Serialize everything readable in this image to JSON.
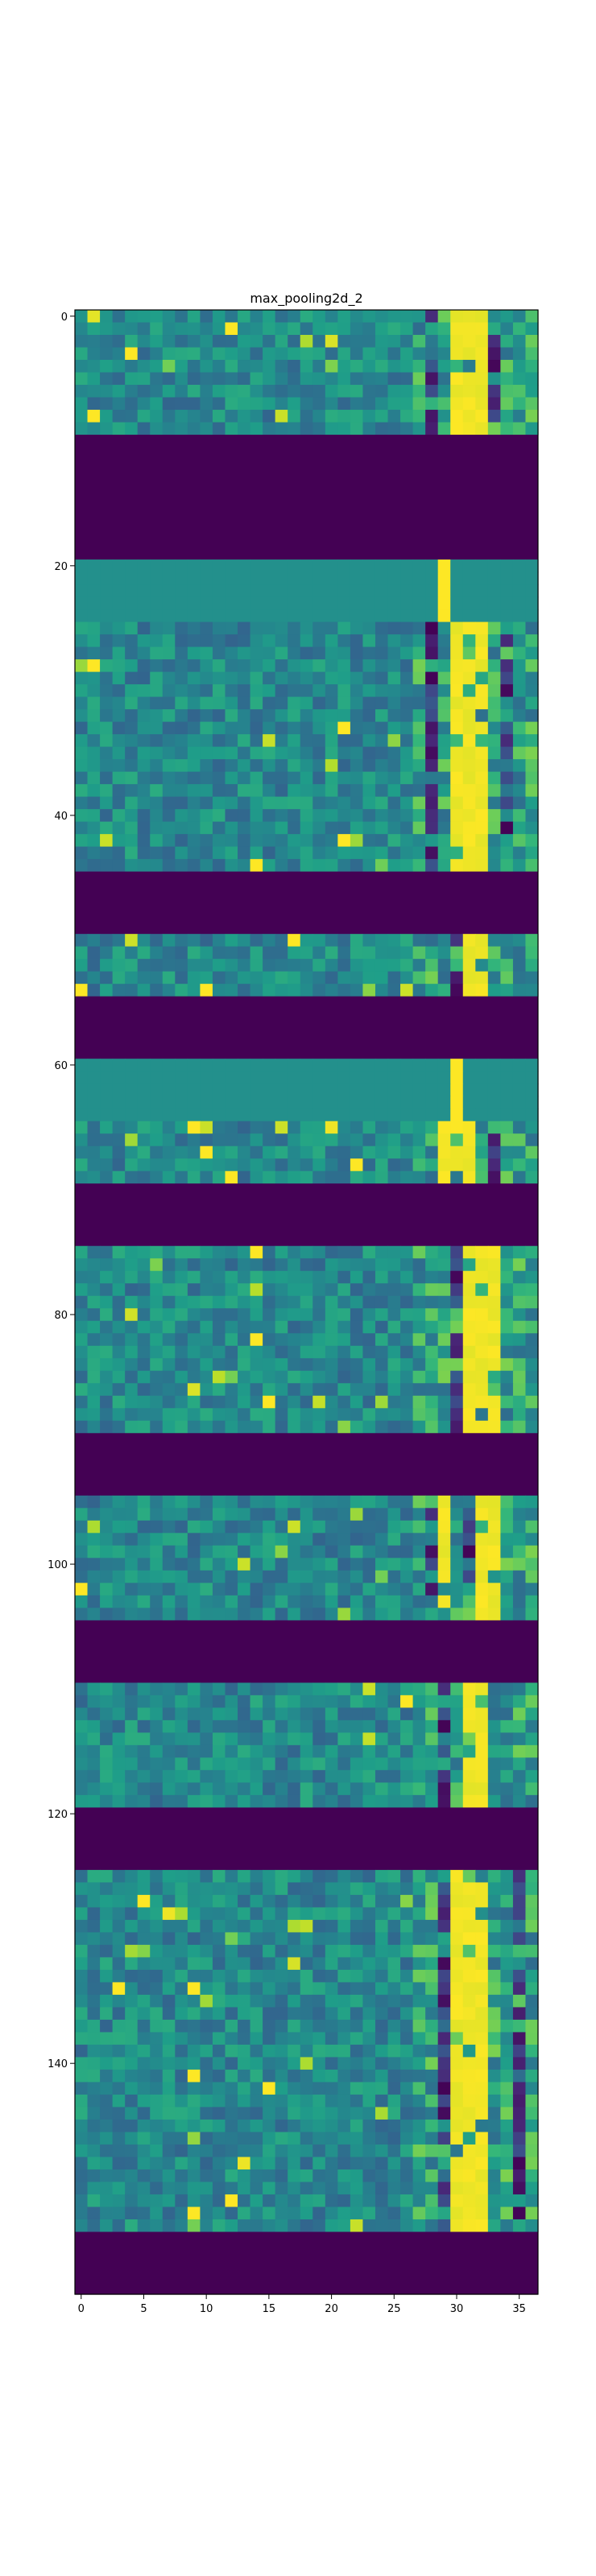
{
  "chart_data": {
    "type": "heatmap",
    "title": "max_pooling2d_2",
    "xlabel": "",
    "ylabel": "",
    "colormap": "viridis",
    "n_cols": 37,
    "n_rows": 159,
    "xlim": [
      -0.5,
      36.5
    ],
    "ylim": [
      158.5,
      -0.5
    ],
    "x_ticks": [
      0,
      5,
      10,
      15,
      20,
      25,
      30,
      35
    ],
    "y_ticks": [
      0,
      20,
      40,
      60,
      80,
      100,
      120,
      140
    ],
    "grid": false,
    "blocks": [
      {
        "rows": [
          0,
          9
        ],
        "kind": "textured",
        "bright_cols": [
          30,
          31,
          32
        ],
        "dark_cols": [
          28,
          33
        ]
      },
      {
        "rows": [
          10,
          19
        ],
        "kind": "off"
      },
      {
        "rows": [
          20,
          24
        ],
        "kind": "flat",
        "bright_cols": [
          29
        ]
      },
      {
        "rows": [
          25,
          44
        ],
        "kind": "textured",
        "bright_cols": [
          30,
          31,
          32
        ],
        "dark_cols": [
          28,
          34
        ]
      },
      {
        "rows": [
          45,
          49
        ],
        "kind": "off"
      },
      {
        "rows": [
          50,
          54
        ],
        "kind": "textured",
        "bright_cols": [
          31,
          32
        ],
        "dark_cols": [
          30
        ]
      },
      {
        "rows": [
          55,
          59
        ],
        "kind": "off"
      },
      {
        "rows": [
          60,
          64
        ],
        "kind": "flat",
        "bright_cols": [
          30
        ]
      },
      {
        "rows": [
          65,
          69
        ],
        "kind": "textured",
        "bright_cols": [
          29,
          30,
          31
        ],
        "dark_cols": [
          33
        ]
      },
      {
        "rows": [
          70,
          74
        ],
        "kind": "off"
      },
      {
        "rows": [
          75,
          89
        ],
        "kind": "textured",
        "bright_cols": [
          31,
          32,
          33
        ],
        "dark_cols": [
          30
        ]
      },
      {
        "rows": [
          90,
          94
        ],
        "kind": "off"
      },
      {
        "rows": [
          95,
          104
        ],
        "kind": "textured",
        "bright_cols": [
          29,
          32,
          33
        ],
        "dark_cols": [
          28,
          31
        ]
      },
      {
        "rows": [
          105,
          109
        ],
        "kind": "off"
      },
      {
        "rows": [
          110,
          119
        ],
        "kind": "textured",
        "bright_cols": [
          31,
          32
        ],
        "dark_cols": [
          29
        ]
      },
      {
        "rows": [
          120,
          124
        ],
        "kind": "off"
      },
      {
        "rows": [
          125,
          153
        ],
        "kind": "textured",
        "bright_cols": [
          30,
          31,
          32
        ],
        "dark_cols": [
          29,
          35
        ]
      },
      {
        "rows": [
          154,
          158
        ],
        "kind": "off"
      }
    ]
  }
}
